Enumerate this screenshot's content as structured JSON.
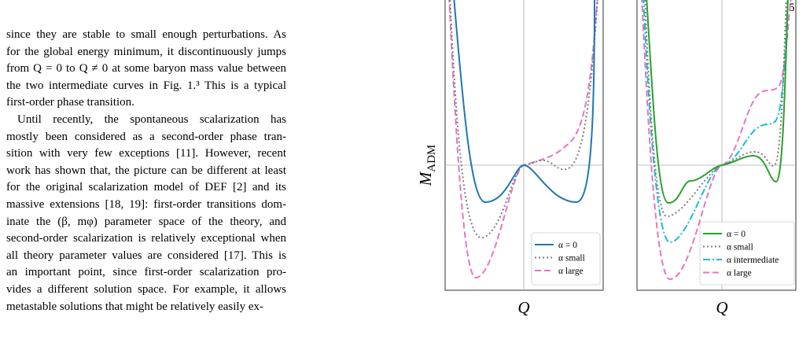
{
  "page_number": "5",
  "body": {
    "lines": [
      "since they are stable to small enough perturbations. As",
      "for the global energy minimum, it discontinuously jumps",
      "from Q = 0 to Q ≠ 0 at some baryon mass value between",
      "the two intermediate curves in Fig. 1.³ This is a typical",
      "first-order phase transition.",
      "Until recently, the spontaneous scalarization has",
      "mostly been considered as a second-order phase tran-",
      "sition with very few exceptions [11]. However, recent",
      "work has shown that, the picture can be different at least",
      "for the original scalarization model of DEF [2] and its",
      "massive extensions [18, 19]: first-order transitions dom-",
      "inate the (β, mφ) parameter space of the theory, and",
      "second-order scalarization is relatively exceptional when",
      "all theory parameter values are considered [17]. This is",
      "an important point, since first-order scalarization pro-",
      "vides a different solution space. For example, it allows",
      "metastable solutions that might be relatively easily ex-"
    ]
  },
  "figure": {
    "y_label": {
      "main": "M",
      "subscript": "ADM"
    },
    "panels": [
      {
        "x_label": "Q",
        "legend": [
          "α = 0",
          "α small",
          "α large"
        ]
      },
      {
        "x_label": "Q",
        "legend": [
          "α = 0",
          "α small",
          "α intermediate",
          "α large"
        ]
      }
    ]
  }
}
